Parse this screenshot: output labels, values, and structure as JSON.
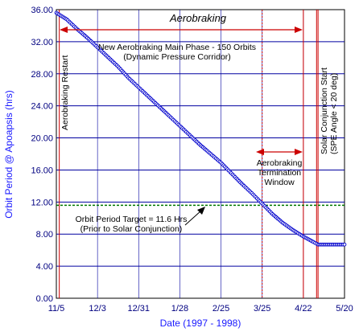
{
  "chart_data": {
    "type": "scatter",
    "xlabel": "Date (1997 - 1998)",
    "ylabel": "Orbit Period @ Apoapsis (hrs)",
    "x_start": "1997-11-05",
    "x_end": "1998-05-20",
    "x_ticks": [
      {
        "date": "1997-11-05",
        "label": "11/5"
      },
      {
        "date": "1997-12-03",
        "label": "12/3"
      },
      {
        "date": "1997-12-31",
        "label": "12/31"
      },
      {
        "date": "1998-01-28",
        "label": "1/28"
      },
      {
        "date": "1998-02-25",
        "label": "2/25"
      },
      {
        "date": "1998-03-25",
        "label": "3/25"
      },
      {
        "date": "1998-04-22",
        "label": "4/22"
      },
      {
        "date": "1998-05-20",
        "label": "5/20"
      }
    ],
    "ylim": [
      0,
      36
    ],
    "y_ticks": [
      "0.00",
      "4.00",
      "8.00",
      "12.00",
      "16.00",
      "20.00",
      "24.00",
      "28.00",
      "32.00",
      "36.00"
    ],
    "grid": true,
    "series": [
      {
        "points": [
          {
            "date": "1997-11-05",
            "y": 35.6
          },
          {
            "date": "1997-11-12",
            "y": 34.8
          },
          {
            "date": "1997-11-19",
            "y": 33.6
          },
          {
            "date": "1997-11-26",
            "y": 32.5
          },
          {
            "date": "1997-12-03",
            "y": 31.3
          },
          {
            "date": "1997-12-10",
            "y": 30.1
          },
          {
            "date": "1997-12-17",
            "y": 28.9
          },
          {
            "date": "1997-12-24",
            "y": 27.5
          },
          {
            "date": "1997-12-31",
            "y": 26.3
          },
          {
            "date": "1998-01-07",
            "y": 25.1
          },
          {
            "date": "1998-01-14",
            "y": 23.9
          },
          {
            "date": "1998-01-21",
            "y": 22.7
          },
          {
            "date": "1998-01-28",
            "y": 21.5
          },
          {
            "date": "1998-02-04",
            "y": 20.3
          },
          {
            "date": "1998-02-11",
            "y": 19.1
          },
          {
            "date": "1998-02-18",
            "y": 18.0
          },
          {
            "date": "1998-02-25",
            "y": 16.9
          },
          {
            "date": "1998-03-04",
            "y": 15.6
          },
          {
            "date": "1998-03-11",
            "y": 14.3
          },
          {
            "date": "1998-03-18",
            "y": 13.1
          },
          {
            "date": "1998-03-25",
            "y": 11.8
          },
          {
            "date": "1998-04-01",
            "y": 10.5
          },
          {
            "date": "1998-04-08",
            "y": 9.4
          },
          {
            "date": "1998-04-15",
            "y": 8.5
          },
          {
            "date": "1998-04-22",
            "y": 7.7
          },
          {
            "date": "1998-04-29",
            "y": 7.0
          },
          {
            "date": "1998-05-02",
            "y": 6.7
          },
          {
            "date": "1998-05-10",
            "y": 6.7
          },
          {
            "date": "1998-05-20",
            "y": 6.7
          }
        ]
      }
    ],
    "target_line": {
      "y": 11.6
    },
    "markers": [
      {
        "date": "1997-11-07",
        "label": "Aerobraking Restart"
      },
      {
        "date": "1998-03-25",
        "label": ""
      },
      {
        "date": "1998-04-22",
        "label": ""
      },
      {
        "date": "1998-05-01",
        "label": "Solar Conjunction Start"
      },
      {
        "date": "1998-05-02",
        "label": "(SPE Angle < 20 deg)"
      }
    ],
    "annotations": {
      "aerobraking_title": "Aerobraking",
      "main_phase_line1": "New Aerobraking Main Phase - 150 Orbits",
      "main_phase_line2": "(Dynamic Pressure Corridor)",
      "termination_line1": "Aerobraking",
      "termination_line2": "Termination",
      "termination_line3": "Window",
      "target_line1": "Orbit Period Target = 11.6 Hrs",
      "target_line2": "(Prior to Solar Conjunction)"
    },
    "colors": {
      "data": "#0000cc",
      "grid": "#0000a0",
      "target": "#007700",
      "marker": "#cc0000",
      "tick_text": "#000080",
      "axis_label": "#1a1aff"
    }
  }
}
